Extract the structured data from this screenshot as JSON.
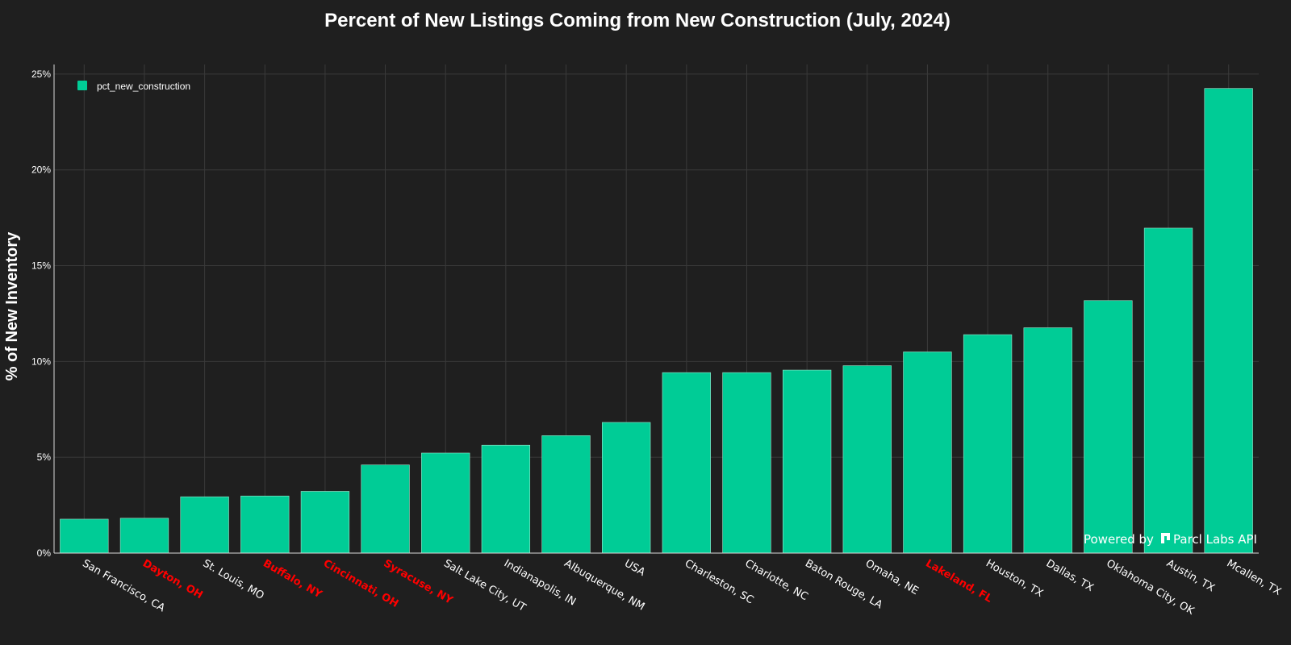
{
  "chart_data": {
    "type": "bar",
    "title": "Percent of New Listings Coming from New Construction (July, 2024)",
    "ylabel": "% of New Inventory",
    "xlabel": "",
    "ylim": [
      0,
      25.5
    ],
    "yticks": [
      0,
      5,
      10,
      15,
      20,
      25
    ],
    "ytick_labels": [
      "0%",
      "5%",
      "10%",
      "15%",
      "20%",
      "25%"
    ],
    "grid": true,
    "legend_position": "top-left",
    "categories": [
      "San Francisco, CA",
      "Dayton, OH",
      "St. Louis, MO",
      "Buffalo, NY",
      "Cincinnati, OH",
      "Syracuse, NY",
      "Salt Lake City, UT",
      "Indianapolis, IN",
      "Albuquerque, NM",
      "USA",
      "Charleston, SC",
      "Charlotte, NC",
      "Baton Rouge, LA",
      "Omaha, NE",
      "Lakeland, FL",
      "Houston, TX",
      "Dallas, TX",
      "Oklahoma City, OK",
      "Austin, TX",
      "Mcallen, TX"
    ],
    "highlighted_categories": [
      "Dayton, OH",
      "Buffalo, NY",
      "Cincinnati, OH",
      "Syracuse, NY",
      "Lakeland, FL"
    ],
    "series": [
      {
        "name": "pct_new_construction",
        "values": [
          1.77,
          1.82,
          2.94,
          2.98,
          3.22,
          4.6,
          5.22,
          5.63,
          6.13,
          6.82,
          9.42,
          9.42,
          9.55,
          9.78,
          10.5,
          11.4,
          11.76,
          13.18,
          16.96,
          24.25
        ]
      }
    ],
    "colors": {
      "bar": "#00cc96",
      "highlight_text": "#ff0000",
      "background": "#1f1f1f"
    }
  },
  "watermark": {
    "text": "Powered by",
    "brand": "Parcl Labs API",
    "icon": "parcl-logo-icon"
  }
}
